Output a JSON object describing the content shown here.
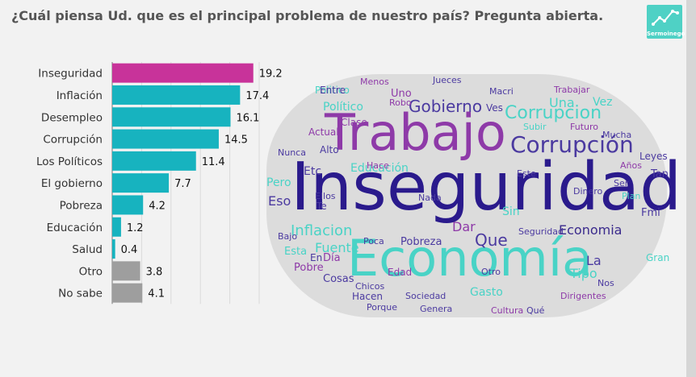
{
  "title": "¿Cuál piensa Ud. que es el principal problema de nuestro país? Pregunta abierta.",
  "logo": {
    "label": "Sermoinego",
    "icon": "trend-line-icon"
  },
  "chart_data": {
    "type": "bar",
    "orientation": "horizontal",
    "title": "¿Cuál piensa Ud. que es el principal problema de nuestro país? Pregunta abierta.",
    "categories": [
      "Inseguridad",
      "Inflación",
      "Desempleo",
      "Corrupción",
      "Los Políticos",
      "El gobierno",
      "Pobreza",
      "Educación",
      "Salud",
      "Otro",
      "No sabe"
    ],
    "values": [
      19.2,
      17.4,
      16.1,
      14.5,
      11.4,
      7.7,
      4.2,
      1.2,
      0.4,
      3.8,
      4.1
    ],
    "colors": [
      "#c8339a",
      "#17b3bf",
      "#17b3bf",
      "#17b3bf",
      "#17b3bf",
      "#17b3bf",
      "#17b3bf",
      "#17b3bf",
      "#17b3bf",
      "#9e9e9e",
      "#9e9e9e"
    ],
    "xlim": [
      0,
      20
    ],
    "grid": true,
    "legend": "none"
  },
  "wordcloud": {
    "words": [
      {
        "text": "Inseguridad",
        "color": "#2a1a8c"
      },
      {
        "text": "Trabajo",
        "color": "#8e3aa8"
      },
      {
        "text": "Economía",
        "color": "#49d3c6"
      },
      {
        "text": "Corrupción",
        "color": "#4b3aa0"
      },
      {
        "text": "Gobierno",
        "color": "#4b3aa0"
      },
      {
        "text": "Corrupcion",
        "color": "#49d3c6"
      },
      {
        "text": "Educación",
        "color": "#49d3c6"
      },
      {
        "text": "Inflacion",
        "color": "#49d3c6"
      },
      {
        "text": "Economia",
        "color": "#3a2a8c"
      },
      {
        "text": "Que",
        "color": "#4b3aa0"
      },
      {
        "text": "Dar",
        "color": "#8e3aa8"
      },
      {
        "text": "Pobreza",
        "color": "#4b3aa0"
      },
      {
        "text": "Político",
        "color": "#49d3c6"
      },
      {
        "text": "Politico",
        "color": "#49d3c6"
      },
      {
        "text": "Etc",
        "color": "#4b3aa0"
      },
      {
        "text": "Eso",
        "color": "#4b3aa0"
      },
      {
        "text": "Pero",
        "color": "#49d3c6"
      },
      {
        "text": "Fuente",
        "color": "#49d3c6"
      },
      {
        "text": "En",
        "color": "#4b3aa0"
      },
      {
        "text": "Día",
        "color": "#8e3aa8"
      },
      {
        "text": "Esta",
        "color": "#49d3c6"
      },
      {
        "text": "Pobre",
        "color": "#8e3aa8"
      },
      {
        "text": "Cosas",
        "color": "#4b3aa0"
      },
      {
        "text": "Tipo",
        "color": "#49d3c6"
      },
      {
        "text": "Edad",
        "color": "#8e3aa8"
      },
      {
        "text": "Hacen",
        "color": "#4b3aa0"
      },
      {
        "text": "Sociedad",
        "color": "#4b3aa0"
      },
      {
        "text": "Gasto",
        "color": "#49d3c6"
      },
      {
        "text": "La",
        "color": "#4b3aa0"
      },
      {
        "text": "Gran",
        "color": "#49d3c6"
      },
      {
        "text": "Tan",
        "color": "#4b3aa0"
      },
      {
        "text": "Plan",
        "color": "#49d3c6"
      },
      {
        "text": "Leyes",
        "color": "#4b3aa0"
      },
      {
        "text": "Años",
        "color": "#8e3aa8"
      },
      {
        "text": "Futuro",
        "color": "#8e3aa8"
      },
      {
        "text": "Mucha",
        "color": "#4b3aa0"
      },
      {
        "text": "Una",
        "color": "#49d3c6"
      },
      {
        "text": "Vez",
        "color": "#49d3c6"
      },
      {
        "text": "Uno",
        "color": "#8e3aa8"
      },
      {
        "text": "Ves",
        "color": "#4b3aa0"
      },
      {
        "text": "Entre",
        "color": "#4b3aa0"
      },
      {
        "text": "Menos",
        "color": "#8e3aa8"
      },
      {
        "text": "Jueces",
        "color": "#4b3aa0"
      },
      {
        "text": "Macri",
        "color": "#4b3aa0"
      },
      {
        "text": "Trabajar",
        "color": "#8e3aa8"
      },
      {
        "text": "Clase",
        "color": "#8e3aa8"
      },
      {
        "text": "Actual",
        "color": "#8e3aa8"
      },
      {
        "text": "Alto",
        "color": "#4b3aa0"
      },
      {
        "text": "Nunca",
        "color": "#4b3aa0"
      },
      {
        "text": "Ellos",
        "color": "#4b3aa0"
      },
      {
        "text": "Te",
        "color": "#4b3aa0"
      },
      {
        "text": "Sin",
        "color": "#49d3c6"
      },
      {
        "text": "Bajo",
        "color": "#4b3aa0"
      },
      {
        "text": "Seguridad",
        "color": "#4b3aa0"
      },
      {
        "text": "Qué",
        "color": "#4b3aa0"
      },
      {
        "text": "Cultura",
        "color": "#8e3aa8"
      },
      {
        "text": "Dirigentes",
        "color": "#8e3aa8"
      },
      {
        "text": "Este",
        "color": "#4b3aa0"
      },
      {
        "text": "Hace",
        "color": "#8e3aa8"
      },
      {
        "text": "Nos",
        "color": "#4b3aa0"
      },
      {
        "text": "Fmi",
        "color": "#4b3aa0"
      },
      {
        "text": "Dinero",
        "color": "#4b3aa0"
      },
      {
        "text": "Ser",
        "color": "#4b3aa0"
      },
      {
        "text": "Otro",
        "color": "#4b3aa0"
      },
      {
        "text": "Poca",
        "color": "#4b3aa0"
      },
      {
        "text": "Nada",
        "color": "#4b3aa0"
      },
      {
        "text": "Chicos",
        "color": "#4b3aa0"
      },
      {
        "text": "Porque",
        "color": "#4b3aa0"
      },
      {
        "text": "Genera",
        "color": "#4b3aa0"
      },
      {
        "text": "Robo",
        "color": "#8e3aa8"
      },
      {
        "text": "Subir",
        "color": "#49d3c6"
      }
    ]
  }
}
